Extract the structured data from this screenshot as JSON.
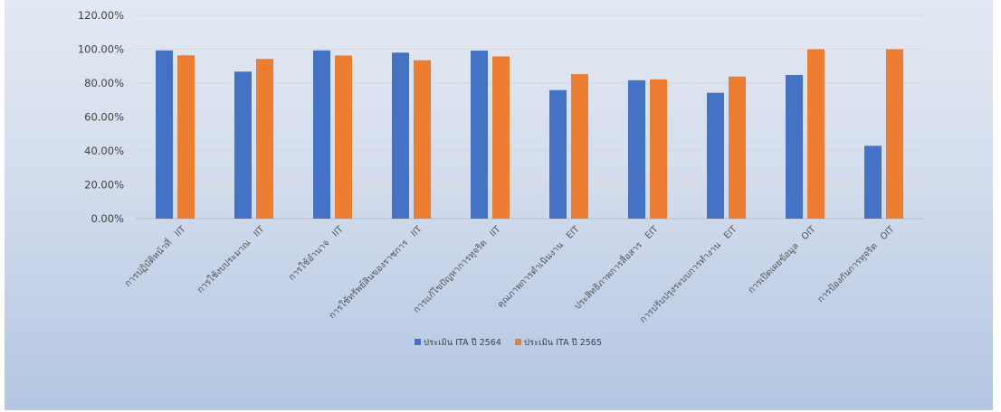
{
  "chart_data": {
    "type": "bar",
    "categories": [
      "การปฏิบัติหน้าที่   IIT",
      "การใช้งบประมาณ   IIT",
      "การใช้อำนาจ   IIT",
      "การใช้ทรัพย์สินของราชการ   IIT",
      "การแก้ไขปัญหาการทุจริต   IIT",
      "คุณภาพการดำเนินงาน   EIT",
      "ประสิทธิภาพการสื่อสาร   EIT",
      "การปรับปรุงระบบการทำงาน   EIT",
      "การเปิดเผยข้อมูล   OIT",
      "การป้องกันการทุจริต   OIT"
    ],
    "series": [
      {
        "name": "ประเมิน ITA ปี 2564",
        "values": [
          99.3,
          86.8,
          99.3,
          98.0,
          99.2,
          75.9,
          81.7,
          74.3,
          84.8,
          43.0
        ]
      },
      {
        "name": "ประเมิน ITA ปี 2565",
        "values": [
          96.4,
          94.3,
          96.3,
          93.5,
          95.8,
          85.3,
          82.2,
          83.9,
          100.0,
          100.0
        ]
      }
    ],
    "yticks": [
      "0.00%",
      "20.00%",
      "40.00%",
      "60.00%",
      "80.00%",
      "100.00%",
      "120.00%"
    ],
    "ylim": [
      0,
      120
    ],
    "grid": true,
    "legend": "bottom",
    "colors": {
      "series_0": "#4472c4",
      "series_1": "#ed7d31",
      "grid": "#d9d9d9"
    }
  }
}
